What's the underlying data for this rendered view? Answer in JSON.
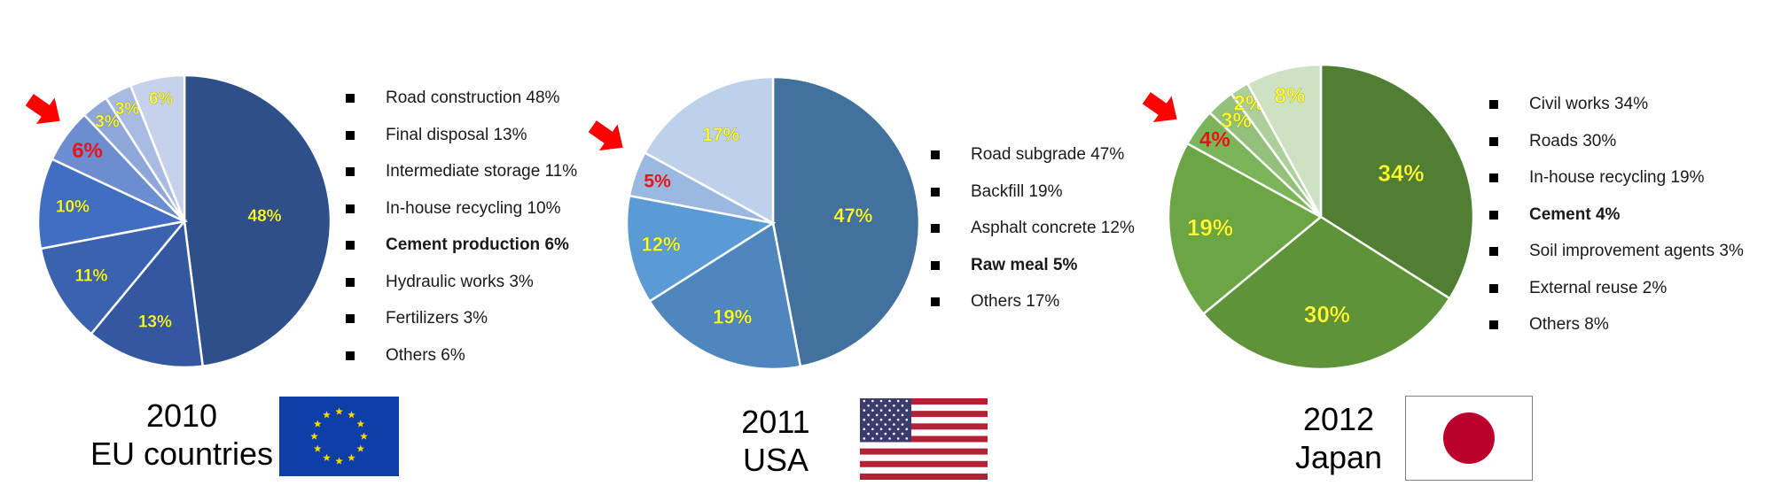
{
  "chart_data": [
    {
      "type": "pie",
      "title": "",
      "caption_year": "2010",
      "caption_region": "EU countries",
      "flag": "eu-flag",
      "highlight_index": 4,
      "slices": [
        {
          "label": "Road construction 48%",
          "value": 48,
          "text": "48%",
          "color": "#2E4F8A"
        },
        {
          "label": "Final disposal 13%",
          "value": 13,
          "text": "13%",
          "color": "#3458A0"
        },
        {
          "label": "Intermediate storage 11%",
          "value": 11,
          "text": "11%",
          "color": "#3A62AE"
        },
        {
          "label": "In-house recycling 10%",
          "value": 10,
          "text": "10%",
          "color": "#416EC0"
        },
        {
          "label": "Cement production 6%",
          "value": 6,
          "text": "6%",
          "color": "#6C8ED0"
        },
        {
          "label": "Hydraulic works 3%",
          "value": 3,
          "text": "3%",
          "color": "#8EA7D9"
        },
        {
          "label": "Fertilizers 3%",
          "value": 3,
          "text": "3%",
          "color": "#A9BBE2"
        },
        {
          "label": "Others 6%",
          "value": 6,
          "text": "6%",
          "color": "#C6D1EC"
        }
      ]
    },
    {
      "type": "pie",
      "title": "",
      "caption_year": "2011",
      "caption_region": "USA",
      "flag": "usa-flag",
      "highlight_index": 3,
      "slices": [
        {
          "label": "Road subgrade 47%",
          "value": 47,
          "text": "47%",
          "color": "#41719C"
        },
        {
          "label": "Backfill 19%",
          "value": 19,
          "text": "19%",
          "color": "#4E86BD"
        },
        {
          "label": "Asphalt concrete 12%",
          "value": 12,
          "text": "12%",
          "color": "#5B9BD5"
        },
        {
          "label": "Raw meal 5%",
          "value": 5,
          "text": "5%",
          "color": "#9AB8E0"
        },
        {
          "label": "Others 17%",
          "value": 17,
          "text": "17%",
          "color": "#BED1EB"
        }
      ]
    },
    {
      "type": "pie",
      "title": "",
      "caption_year": "2012",
      "caption_region": "Japan",
      "flag": "japan-flag",
      "highlight_index": 3,
      "slices": [
        {
          "label": "Civil works 34%",
          "value": 34,
          "text": "34%",
          "color": "#507E32"
        },
        {
          "label": "Roads 30%",
          "value": 30,
          "text": "30%",
          "color": "#5E9339"
        },
        {
          "label": "In-house recycling 19%",
          "value": 19,
          "text": "19%",
          "color": "#6CA544"
        },
        {
          "label": "Cement 4%",
          "value": 4,
          "text": "4%",
          "color": "#7CB45A"
        },
        {
          "label": "Soil improvement agents 3%",
          "value": 3,
          "text": "3%",
          "color": "#93C07B"
        },
        {
          "label": "External reuse 2%",
          "value": 2,
          "text": "2%",
          "color": "#ADCF9A"
        },
        {
          "label": "Others 8%",
          "value": 8,
          "text": "8%",
          "color": "#CFE1C3"
        }
      ]
    }
  ],
  "colors": {
    "slice_label": "#FFFF33",
    "highlight_label": "#E8141C",
    "arrow": "#FF0000",
    "slice_border": "#FFFFFF"
  }
}
